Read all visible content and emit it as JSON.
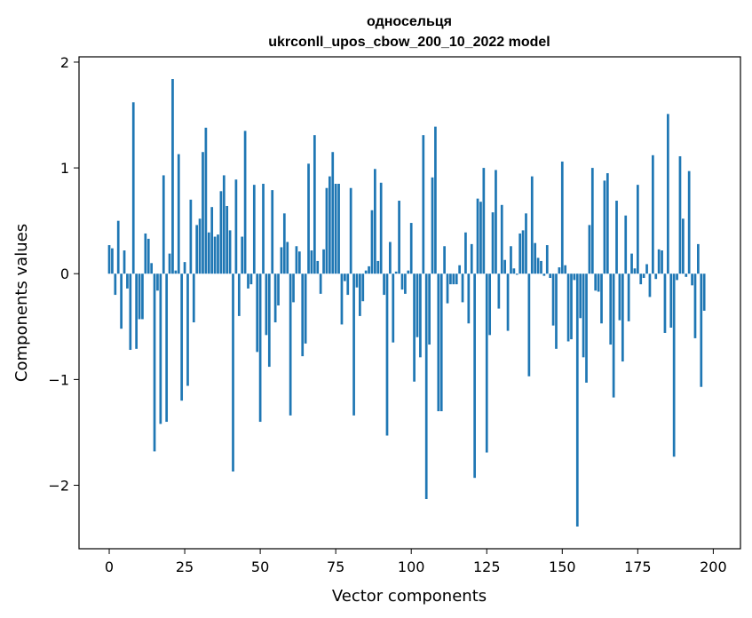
{
  "chart_data": {
    "type": "bar",
    "title": "односельця",
    "subtitle": "ukrconll_upos_cbow_200_10_2022 model",
    "xlabel": "Vector components",
    "ylabel": "Components values",
    "xlim": [
      -10,
      209
    ],
    "ylim": [
      -2.6,
      2.05
    ],
    "xticks": [
      0,
      25,
      50,
      75,
      100,
      125,
      150,
      175,
      200
    ],
    "xtick_labels": [
      "0",
      "25",
      "50",
      "75",
      "100",
      "125",
      "150",
      "175",
      "200"
    ],
    "yticks": [
      -2,
      -1,
      0,
      1,
      2
    ],
    "ytick_labels": [
      "−2",
      "−1",
      "0",
      "1",
      "2"
    ],
    "grid": false,
    "bar_color": "#1f77b4",
    "values": [
      0.27,
      0.24,
      -0.2,
      0.5,
      -0.52,
      0.22,
      -0.14,
      -0.72,
      1.62,
      -0.71,
      -0.43,
      -0.43,
      0.38,
      0.33,
      0.1,
      -1.68,
      -0.16,
      -1.42,
      0.93,
      -1.4,
      0.19,
      1.84,
      0.03,
      1.13,
      -1.2,
      0.11,
      -1.06,
      0.7,
      -0.46,
      0.46,
      0.52,
      1.15,
      1.38,
      0.39,
      0.63,
      0.35,
      0.37,
      0.78,
      0.93,
      0.64,
      0.41,
      -1.87,
      0.89,
      -0.4,
      0.35,
      1.35,
      -0.14,
      -0.1,
      0.84,
      -0.74,
      -1.4,
      0.85,
      -0.58,
      -0.88,
      0.79,
      -0.46,
      -0.3,
      0.25,
      0.57,
      0.3,
      -1.34,
      -0.27,
      0.26,
      0.21,
      -0.78,
      -0.66,
      1.04,
      0.22,
      1.31,
      0.12,
      -0.19,
      0.23,
      0.81,
      0.92,
      1.15,
      0.85,
      0.85,
      -0.48,
      -0.07,
      -0.2,
      0.81,
      -1.34,
      -0.13,
      -0.4,
      -0.26,
      0.03,
      0.07,
      0.6,
      0.99,
      0.12,
      0.86,
      -0.2,
      -1.53,
      0.3,
      -0.65,
      0.02,
      0.69,
      -0.15,
      -0.19,
      0.03,
      0.48,
      -1.02,
      -0.6,
      -0.79,
      1.31,
      -2.13,
      -0.67,
      0.91,
      1.39,
      -1.3,
      -1.3,
      0.26,
      -0.28,
      -0.1,
      -0.1,
      -0.1,
      0.08,
      -0.27,
      0.39,
      -0.47,
      0.28,
      -1.93,
      0.71,
      0.68,
      1.0,
      -1.69,
      -0.58,
      0.58,
      0.98,
      -0.33,
      0.65,
      0.13,
      -0.54,
      0.26,
      0.05,
      -0.01,
      0.38,
      0.41,
      0.57,
      -0.97,
      0.92,
      0.29,
      0.15,
      0.12,
      -0.02,
      0.27,
      -0.04,
      -0.49,
      -0.71,
      0.06,
      1.06,
      0.08,
      -0.64,
      -0.62,
      -0.06,
      -2.39,
      -0.42,
      -0.79,
      -1.03,
      0.46,
      1.0,
      -0.16,
      -0.17,
      -0.47,
      0.88,
      0.95,
      -0.67,
      -1.17,
      0.69,
      -0.44,
      -0.83,
      0.55,
      -0.45,
      0.19,
      0.05,
      0.84,
      -0.1,
      -0.04,
      0.09,
      -0.22,
      1.12,
      -0.05,
      0.23,
      0.22,
      -0.56,
      1.51,
      -0.51,
      -1.73,
      -0.06,
      1.11,
      0.52,
      -0.03,
      0.97,
      -0.11,
      -0.61,
      0.28,
      -1.07,
      -0.35
    ]
  }
}
